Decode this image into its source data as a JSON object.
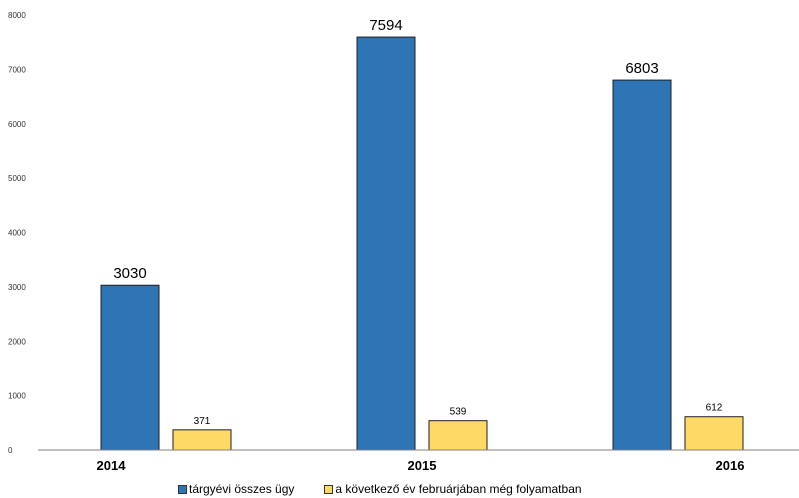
{
  "chart_data": {
    "type": "bar",
    "categories": [
      "2014",
      "2015",
      "2016"
    ],
    "series": [
      {
        "name": "tárgyévi összes ügy",
        "values": [
          3030,
          7594,
          6803
        ],
        "color": "#2E75B6"
      },
      {
        "name": "a következő év februárjában még folyamatban",
        "values": [
          371,
          539,
          612
        ],
        "color": "#FFD966"
      }
    ],
    "ylim": [
      0,
      8000
    ],
    "yticks": [
      0,
      1000,
      2000,
      3000,
      4000,
      5000,
      6000,
      7000,
      8000
    ],
    "grid": false,
    "legend_position": "bottom"
  }
}
